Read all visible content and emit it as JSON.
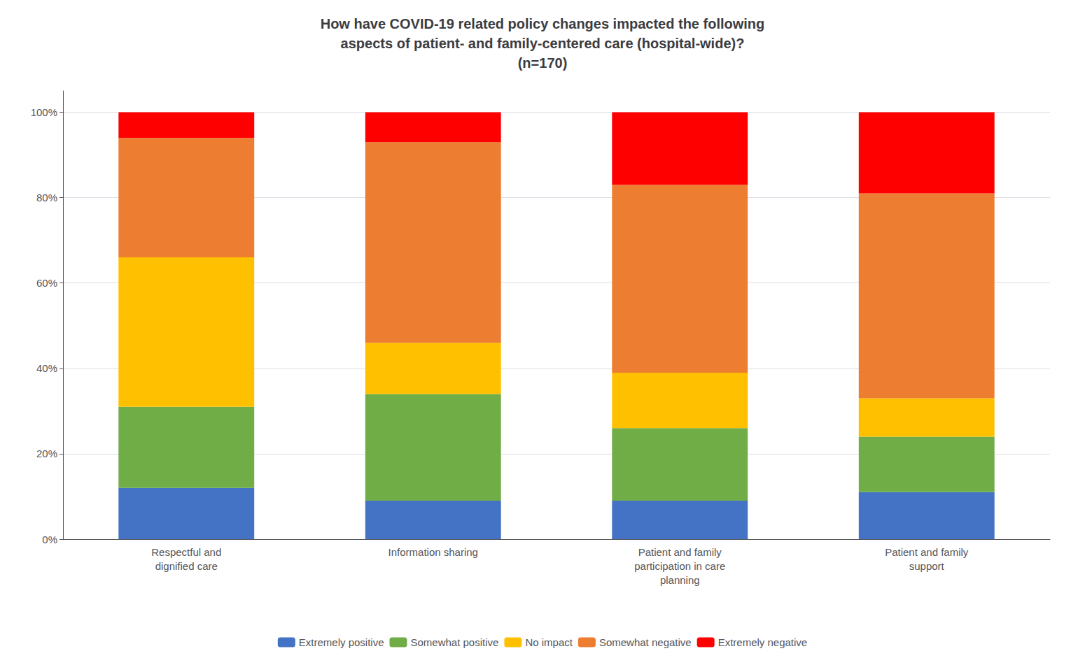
{
  "chart_data": {
    "type": "bar",
    "title": "How have COVID-19 related policy changes impacted the following\naspects of patient- and family-centered care (hospital-wide)?\n(n=170)",
    "categories": [
      "Respectful and\ndignified care",
      "Information sharing",
      "Patient and family\nparticipation in care\nplanning",
      "Patient and family\nsupport"
    ],
    "series": [
      {
        "name": "Extremely positive",
        "color": "#4472C4",
        "values": [
          12,
          9,
          9,
          11
        ]
      },
      {
        "name": "Somewhat positive",
        "color": "#70AD47",
        "values": [
          19,
          25,
          17,
          13
        ]
      },
      {
        "name": "No impact",
        "color": "#FFC000",
        "values": [
          35,
          12,
          13,
          9
        ]
      },
      {
        "name": "Somewhat negative",
        "color": "#ED7D31",
        "values": [
          28,
          47,
          44,
          48
        ]
      },
      {
        "name": "Extremely negative",
        "color": "#FF0000",
        "values": [
          6,
          7,
          17,
          19
        ]
      }
    ],
    "stacked": true,
    "ylim": [
      0,
      105
    ],
    "yticks": [
      {
        "value": 0,
        "label": "0%"
      },
      {
        "value": 20,
        "label": "20%"
      },
      {
        "value": 40,
        "label": "40%"
      },
      {
        "value": 60,
        "label": "60%"
      },
      {
        "value": 80,
        "label": "80%"
      },
      {
        "value": 100,
        "label": "100%"
      }
    ],
    "grid": true,
    "legend": "bottom"
  }
}
